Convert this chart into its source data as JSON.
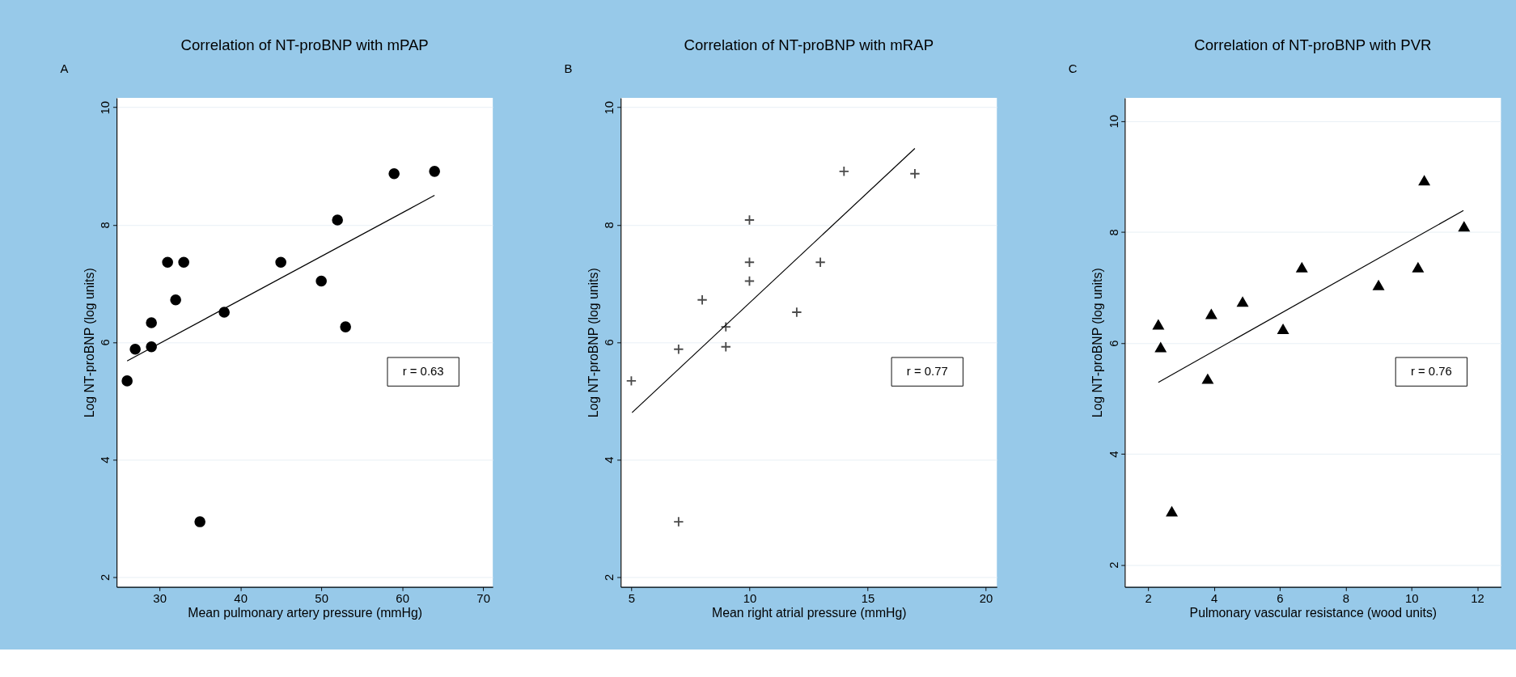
{
  "chart_data": [
    {
      "type": "scatter",
      "title": "Correlation of NT-proBNP with mPAP",
      "xlabel": "Mean pulmonary artery pressure (mmHg)",
      "ylabel": "Log NT-proBNP (log units)",
      "annotations": [
        "A",
        "r = 0.63"
      ],
      "xlim": [
        24.7,
        71.2
      ],
      "xticks": [
        30,
        40,
        50,
        60,
        70
      ],
      "ylim": [
        1.83,
        10.16
      ],
      "yticks": [
        2,
        4,
        6,
        8,
        10
      ],
      "grid": "y",
      "series": [
        {
          "type": "scatter",
          "marker": "circle",
          "color": "#000000",
          "x": [
            26,
            27,
            29,
            29,
            31,
            32,
            33,
            35,
            38,
            45,
            50,
            52,
            53,
            59,
            64
          ],
          "values": [
            5.34,
            5.88,
            5.92,
            6.33,
            7.36,
            6.72,
            7.36,
            2.94,
            6.51,
            7.36,
            7.04,
            8.08,
            6.26,
            8.87,
            8.91
          ]
        },
        {
          "type": "line",
          "line_style": "solid",
          "color": "#000000",
          "x": [
            26,
            64
          ],
          "values": [
            5.68,
            8.5
          ]
        }
      ]
    },
    {
      "type": "scatter",
      "title": "Correlation of NT-proBNP with mRAP",
      "xlabel": "Mean right atrial pressure (mmHg)",
      "ylabel": "Log NT-proBNP (log units)",
      "annotations": [
        "B",
        "r = 0.77"
      ],
      "xlim": [
        4.55,
        20.47
      ],
      "xticks": [
        5,
        10,
        15,
        20
      ],
      "ylim": [
        1.83,
        10.16
      ],
      "yticks": [
        2,
        4,
        6,
        8,
        10
      ],
      "grid": "y",
      "series": [
        {
          "type": "scatter",
          "marker": "cross",
          "color": "#000000",
          "x": [
            5,
            7,
            7,
            8,
            9,
            9,
            10,
            10,
            10,
            12,
            13,
            14,
            17
          ],
          "values": [
            5.34,
            5.88,
            2.94,
            6.72,
            6.26,
            5.92,
            8.08,
            7.36,
            7.04,
            6.51,
            7.36,
            8.91,
            8.87
          ]
        },
        {
          "type": "line",
          "line_style": "solid",
          "color": "#000000",
          "x": [
            5.03,
            17
          ],
          "values": [
            4.8,
            9.3
          ]
        }
      ]
    },
    {
      "type": "scatter",
      "title": "Correlation of NT-proBNP with PVR",
      "xlabel": "Pulmonary vascular resistance (wood units)",
      "ylabel": "Log NT-proBNP (log units)",
      "annotations": [
        "C",
        "r = 0.76"
      ],
      "xlim": [
        1.29,
        12.72
      ],
      "xticks": [
        2,
        4,
        6,
        8,
        10,
        12
      ],
      "ylim": [
        1.6,
        10.42
      ],
      "yticks": [
        2,
        4,
        6,
        8,
        10
      ],
      "grid": "y",
      "series": [
        {
          "type": "scatter",
          "marker": "triangle",
          "color": "#000000",
          "x": [
            2.31,
            2.38,
            2.72,
            3.81,
            3.92,
            4.87,
            6.1,
            6.67,
            9.0,
            10.2,
            10.39,
            11.6
          ],
          "values": [
            6.33,
            5.92,
            2.96,
            5.35,
            6.52,
            6.74,
            6.25,
            7.36,
            7.04,
            7.36,
            8.93,
            8.1
          ]
        },
        {
          "type": "line",
          "line_style": "solid",
          "color": "#000000",
          "x": [
            2.31,
            11.58
          ],
          "values": [
            5.29,
            8.39
          ]
        }
      ]
    }
  ]
}
